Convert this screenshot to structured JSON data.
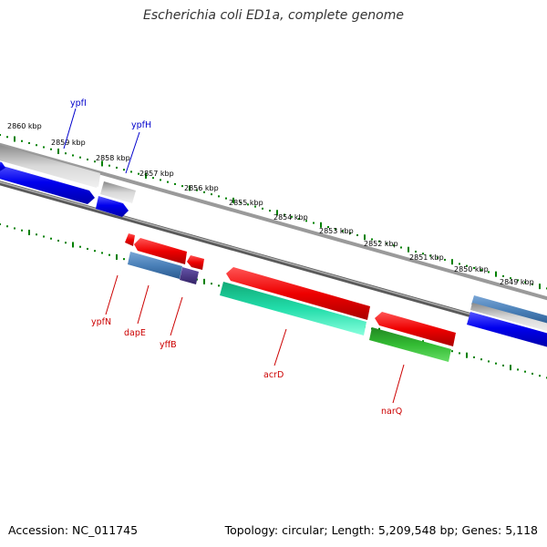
{
  "title": "Escherichia coli ED1a, complete genome",
  "footer": {
    "accession": "Accession: NC_011745",
    "topology": "Topology: circular; Length: 5,209,548 bp; Genes: 5,118"
  },
  "colors": {
    "forward_label": "#0000cc",
    "reverse_label": "#cc0000",
    "tick": "#008000",
    "backbone": "#808080",
    "cds_blue": "#0000ee",
    "cds_grey": "#bbbbbb",
    "cds_red": "#ee0000",
    "rna_steelblue": "#4a80b8",
    "rna_teal": "#22ddaa",
    "rna_green": "#33bb33",
    "pseudo_purple": "#443388"
  },
  "tick_labels": [
    "2860 kbp",
    "2859 kbp",
    "2858 kbp",
    "2857 kbp",
    "2856 kbp",
    "2855 kbp",
    "2854 kbp",
    "2853 kbp",
    "2852 kbp",
    "2851 kbp",
    "2850 kbp",
    "2849 kbp"
  ],
  "forward_labels": [
    "ypfI",
    "ypfH"
  ],
  "reverse_labels": [
    "ypfN",
    "dapE",
    "yffB",
    "acrD",
    "narQ"
  ]
}
